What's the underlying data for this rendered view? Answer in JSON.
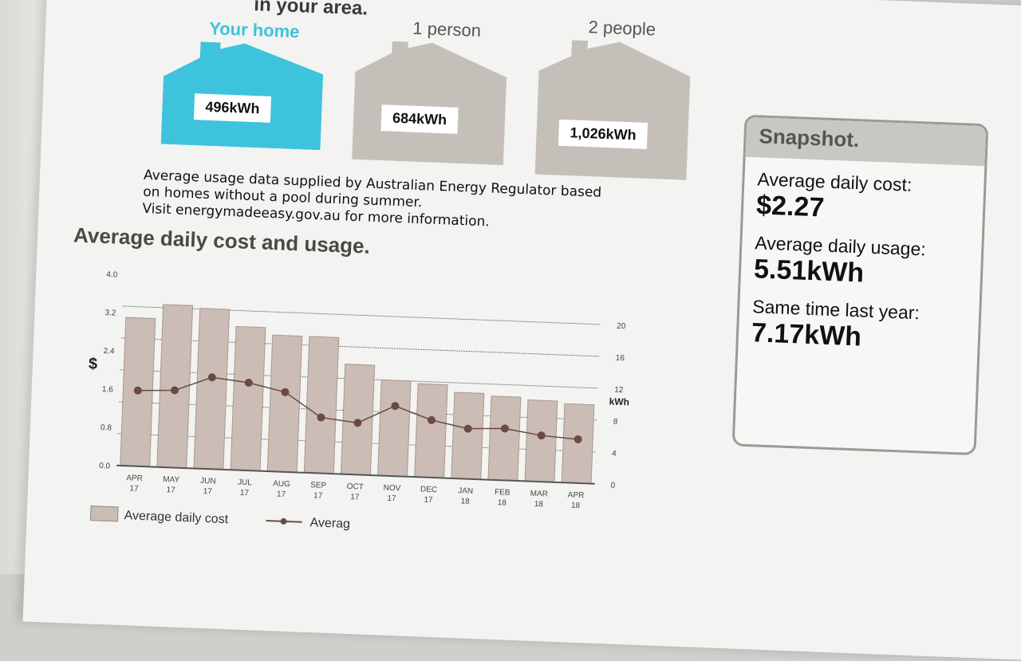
{
  "header": {
    "title_fragment": "in your area."
  },
  "comparison": [
    {
      "label": "Your home",
      "value": "496kWh",
      "color": "#3ec3dc"
    },
    {
      "label": "1 person",
      "value": "684kWh",
      "color": "#c4c0b9"
    },
    {
      "label": "2 people",
      "value": "1,026kWh",
      "color": "#c4c0b9"
    }
  ],
  "note": {
    "line1": "Average usage data supplied by Australian Energy Regulator based",
    "line2": "on homes without a pool during summer.",
    "line3": "Visit energymadeeasy.gov.au for more information."
  },
  "chart_title": "Average daily cost and usage.",
  "chart_data": {
    "type": "bar",
    "categories": [
      "APR 17",
      "MAY 17",
      "JUN 17",
      "JUL 17",
      "AUG 17",
      "SEP 17",
      "OCT 17",
      "NOV 17",
      "DEC 17",
      "JAN 18",
      "FEB 18",
      "MAR 18",
      "APR 18"
    ],
    "series": [
      {
        "name": "Average daily cost",
        "type": "bar",
        "axis": "left",
        "color": "#cbbcb5",
        "values": [
          3.1,
          3.4,
          3.35,
          3.0,
          2.85,
          2.85,
          2.3,
          2.0,
          1.95,
          1.8,
          1.75,
          1.7,
          1.65
        ]
      },
      {
        "name": "Averag",
        "type": "line",
        "axis": "right",
        "color": "#6b4a44",
        "values": [
          9.5,
          9.7,
          11.5,
          11.0,
          10.0,
          7.0,
          6.5,
          8.8,
          7.2,
          6.3,
          6.5,
          5.8,
          5.5
        ]
      }
    ],
    "ylabel": "$",
    "y2label": "kWh",
    "ylim": [
      0,
      4.0
    ],
    "yticks": [
      "0.0",
      "0.8",
      "1.6",
      "2.4",
      "3.2",
      "4.0"
    ],
    "y2lim": [
      0,
      24
    ],
    "y2ticks": [
      "0",
      "4",
      "8",
      "12",
      "16",
      "20"
    ],
    "grid": true,
    "legend": "bottom"
  },
  "snapshot": {
    "title": "Snapshot.",
    "cost_label": "Average daily cost:",
    "cost_value": "$2.27",
    "usage_label": "Average daily usage:",
    "usage_value": "5.51kWh",
    "last_year_label": "Same time last year:",
    "last_year_value": "7.17kWh"
  }
}
